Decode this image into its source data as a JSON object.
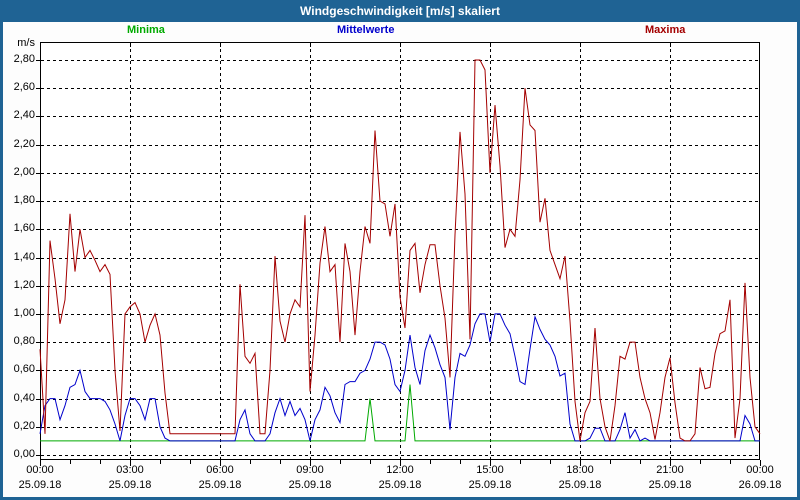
{
  "window": {
    "title": "Windgeschwindigkeit [m/s] skaliert",
    "title_bar_color": "#1f6394",
    "background_color": "#fdfdfd"
  },
  "legend": [
    {
      "label": "Minima",
      "color": "#00aa00"
    },
    {
      "label": "Mittelwerte",
      "color": "#0000cc"
    },
    {
      "label": "Maxima",
      "color": "#a40000"
    }
  ],
  "chart_data": {
    "type": "line",
    "title": "Windgeschwindigkeit [m/s] skaliert",
    "unit_label": "m/s",
    "grid": "dashed",
    "ylim": [
      0,
      2.93
    ],
    "y_tick_step": 0.2,
    "x_start": "00:00 25.09.18",
    "x_end": "00:00 26.09.18",
    "x_step_minutes": 10,
    "x_ticks": [
      {
        "time": "00:00",
        "date": "25.09.18"
      },
      {
        "time": "03:00",
        "date": "25.09.18"
      },
      {
        "time": "06:00",
        "date": "25.09.18"
      },
      {
        "time": "09:00",
        "date": "25.09.18"
      },
      {
        "time": "12:00",
        "date": "25.09.18"
      },
      {
        "time": "15:00",
        "date": "25.09.18"
      },
      {
        "time": "18:00",
        "date": "25.09.18"
      },
      {
        "time": "21:00",
        "date": "25.09.18"
      },
      {
        "time": "00:00",
        "date": "26.09.18"
      }
    ],
    "y_ticks": [
      {
        "value": 2.8,
        "label": "2,80"
      },
      {
        "value": 2.6,
        "label": "2,60"
      },
      {
        "value": 2.4,
        "label": "2,40"
      },
      {
        "value": 2.2,
        "label": "2,20"
      },
      {
        "value": 2.0,
        "label": "2,00"
      },
      {
        "value": 1.8,
        "label": "1,80"
      },
      {
        "value": 1.6,
        "label": "1,60"
      },
      {
        "value": 1.4,
        "label": "1,40"
      },
      {
        "value": 1.2,
        "label": "1,20"
      },
      {
        "value": 1.0,
        "label": "1,00"
      },
      {
        "value": 0.8,
        "label": "0,80"
      },
      {
        "value": 0.6,
        "label": "0,60"
      },
      {
        "value": 0.4,
        "label": "0,40"
      },
      {
        "value": 0.2,
        "label": "0,20"
      },
      {
        "value": 0.0,
        "label": "0,00"
      }
    ],
    "series": [
      {
        "name": "Minima",
        "color": "#00aa00",
        "values": [
          0.1,
          0.1,
          0.1,
          0.1,
          0.1,
          0.1,
          0.1,
          0.1,
          0.1,
          0.1,
          0.1,
          0.1,
          0.1,
          0.1,
          0.1,
          0.1,
          0.1,
          0.1,
          0.1,
          0.1,
          0.1,
          0.1,
          0.1,
          0.1,
          0.1,
          0.1,
          0.1,
          0.1,
          0.1,
          0.1,
          0.1,
          0.1,
          0.1,
          0.1,
          0.1,
          0.1,
          0.1,
          0.1,
          0.1,
          0.1,
          0.1,
          0.1,
          0.1,
          0.1,
          0.1,
          0.1,
          0.1,
          0.1,
          0.1,
          0.1,
          0.1,
          0.1,
          0.1,
          0.1,
          0.1,
          0.1,
          0.1,
          0.1,
          0.1,
          0.1,
          0.1,
          0.1,
          0.1,
          0.1,
          0.1,
          0.1,
          0.4,
          0.1,
          0.1,
          0.1,
          0.1,
          0.1,
          0.1,
          0.1,
          0.5,
          0.1,
          0.1,
          0.1,
          0.1,
          0.1,
          0.1,
          0.1,
          0.1,
          0.1,
          0.1,
          0.1,
          0.1,
          0.1,
          0.1,
          0.1,
          0.1,
          0.1,
          0.1,
          0.1,
          0.1,
          0.1,
          0.1,
          0.1,
          0.1,
          0.1,
          0.1,
          0.1,
          0.1,
          0.1,
          0.1,
          0.1,
          0.1,
          0.1,
          0.1,
          0.1,
          0.1,
          0.1,
          0.1,
          0.1,
          0.1,
          0.1,
          0.1,
          0.1,
          0.1,
          0.1,
          0.1,
          0.1,
          0.1,
          0.1,
          0.1,
          0.1,
          0.1,
          0.1,
          0.1,
          0.1,
          0.1,
          0.1,
          0.1,
          0.1,
          0.1,
          0.1,
          0.1,
          0.1,
          0.1,
          0.1,
          0.1,
          0.1,
          0.1,
          0.1,
          0.1
        ]
      },
      {
        "name": "Mittelwerte",
        "color": "#0000cc",
        "values": [
          0.15,
          0.35,
          0.4,
          0.4,
          0.25,
          0.35,
          0.48,
          0.5,
          0.6,
          0.45,
          0.4,
          0.4,
          0.4,
          0.38,
          0.32,
          0.22,
          0.1,
          0.28,
          0.4,
          0.4,
          0.35,
          0.25,
          0.4,
          0.4,
          0.2,
          0.12,
          0.1,
          0.1,
          0.1,
          0.1,
          0.1,
          0.1,
          0.1,
          0.1,
          0.1,
          0.1,
          0.1,
          0.1,
          0.1,
          0.1,
          0.25,
          0.32,
          0.15,
          0.1,
          0.1,
          0.1,
          0.15,
          0.3,
          0.4,
          0.28,
          0.38,
          0.28,
          0.33,
          0.25,
          0.1,
          0.25,
          0.32,
          0.48,
          0.42,
          0.3,
          0.23,
          0.5,
          0.52,
          0.52,
          0.58,
          0.6,
          0.68,
          0.8,
          0.8,
          0.78,
          0.68,
          0.5,
          0.45,
          0.6,
          0.85,
          0.62,
          0.5,
          0.74,
          0.85,
          0.76,
          0.64,
          0.55,
          0.18,
          0.55,
          0.72,
          0.7,
          0.78,
          0.93,
          1.0,
          1.0,
          0.8,
          1.0,
          1.0,
          0.92,
          0.86,
          0.7,
          0.52,
          0.5,
          0.75,
          0.98,
          0.89,
          0.82,
          0.78,
          0.7,
          0.56,
          0.58,
          0.22,
          0.1,
          0.1,
          0.1,
          0.12,
          0.19,
          0.19,
          0.1,
          0.1,
          0.1,
          0.18,
          0.3,
          0.12,
          0.18,
          0.1,
          0.12,
          0.1,
          0.1,
          0.1,
          0.1,
          0.1,
          0.1,
          0.1,
          0.1,
          0.1,
          0.1,
          0.1,
          0.1,
          0.1,
          0.1,
          0.1,
          0.1,
          0.1,
          0.1,
          0.1,
          0.28,
          0.22,
          0.1,
          0.1
        ]
      },
      {
        "name": "Maxima",
        "color": "#a40000",
        "values": [
          0.75,
          0.15,
          1.52,
          1.25,
          0.93,
          1.1,
          1.71,
          1.3,
          1.6,
          1.4,
          1.45,
          1.38,
          1.3,
          1.35,
          1.28,
          0.6,
          0.17,
          1.0,
          1.05,
          1.08,
          1.0,
          0.8,
          0.92,
          1.0,
          0.85,
          0.44,
          0.15,
          0.15,
          0.15,
          0.15,
          0.15,
          0.15,
          0.15,
          0.15,
          0.15,
          0.15,
          0.15,
          0.15,
          0.15,
          0.15,
          1.21,
          0.7,
          0.65,
          0.72,
          0.15,
          0.15,
          0.6,
          1.41,
          0.95,
          0.8,
          1.0,
          1.1,
          1.05,
          1.7,
          0.45,
          0.85,
          1.36,
          1.62,
          1.3,
          1.35,
          0.8,
          1.5,
          1.3,
          0.85,
          1.3,
          1.62,
          1.5,
          2.3,
          1.8,
          1.78,
          1.55,
          1.78,
          1.12,
          0.9,
          1.45,
          1.5,
          1.15,
          1.35,
          1.49,
          1.49,
          1.2,
          0.97,
          0.55,
          1.56,
          2.29,
          1.85,
          0.82,
          2.8,
          2.8,
          2.73,
          2.0,
          2.48,
          2.05,
          1.47,
          1.6,
          1.55,
          1.95,
          2.6,
          2.34,
          2.3,
          1.65,
          1.82,
          1.45,
          1.35,
          1.25,
          1.41,
          0.95,
          0.38,
          0.1,
          0.3,
          0.38,
          0.9,
          0.4,
          0.2,
          0.1,
          0.35,
          0.7,
          0.68,
          0.8,
          0.8,
          0.55,
          0.4,
          0.3,
          0.11,
          0.3,
          0.55,
          0.69,
          0.37,
          0.12,
          0.1,
          0.1,
          0.15,
          0.62,
          0.47,
          0.48,
          0.72,
          0.86,
          0.88,
          1.1,
          0.12,
          0.4,
          1.22,
          0.55,
          0.2,
          0.15
        ]
      }
    ]
  }
}
